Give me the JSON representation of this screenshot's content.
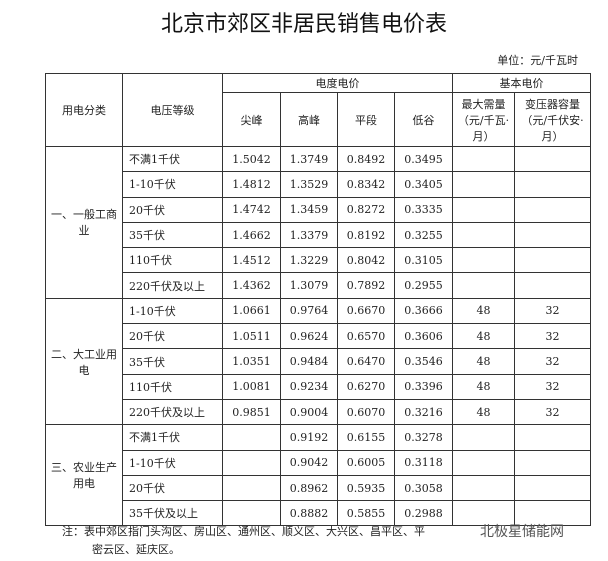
{
  "title": "北京市郊区非居民销售电价表",
  "unit": "单位：元/千瓦时",
  "headers": {
    "category": "用电分类",
    "voltage": "电压等级",
    "energy_price": "电度电价",
    "peak": "尖峰",
    "high": "高峰",
    "flat": "平段",
    "valley": "低谷",
    "basic_price": "基本电价",
    "max_demand": "最大需量（元/千瓦·月）",
    "transformer": "变压器容量（元/千伏安·月）"
  },
  "groups": [
    {
      "name": "一、一般工商业",
      "rows": [
        [
          "不满1千伏",
          "1.5042",
          "1.3749",
          "0.8492",
          "0.3495",
          "",
          ""
        ],
        [
          "1-10千伏",
          "1.4812",
          "1.3529",
          "0.8342",
          "0.3405",
          "",
          ""
        ],
        [
          "20千伏",
          "1.4742",
          "1.3459",
          "0.8272",
          "0.3335",
          "",
          ""
        ],
        [
          "35千伏",
          "1.4662",
          "1.3379",
          "0.8192",
          "0.3255",
          "",
          ""
        ],
        [
          "110千伏",
          "1.4512",
          "1.3229",
          "0.8042",
          "0.3105",
          "",
          ""
        ],
        [
          "220千伏及以上",
          "1.4362",
          "1.3079",
          "0.7892",
          "0.2955",
          "",
          ""
        ]
      ]
    },
    {
      "name": "二、大工业用电",
      "rows": [
        [
          "1-10千伏",
          "1.0661",
          "0.9764",
          "0.6670",
          "0.3666",
          "48",
          "32"
        ],
        [
          "20千伏",
          "1.0511",
          "0.9624",
          "0.6570",
          "0.3606",
          "48",
          "32"
        ],
        [
          "35千伏",
          "1.0351",
          "0.9484",
          "0.6470",
          "0.3546",
          "48",
          "32"
        ],
        [
          "110千伏",
          "1.0081",
          "0.9234",
          "0.6270",
          "0.3396",
          "48",
          "32"
        ],
        [
          "220千伏及以上",
          "0.9851",
          "0.9004",
          "0.6070",
          "0.3216",
          "48",
          "32"
        ]
      ]
    },
    {
      "name": "三、农业生产用电",
      "rows": [
        [
          "不满1千伏",
          "",
          "0.9192",
          "0.6155",
          "0.3278",
          "",
          ""
        ],
        [
          "1-10千伏",
          "",
          "0.9042",
          "0.6005",
          "0.3118",
          "",
          ""
        ],
        [
          "20千伏",
          "",
          "0.8962",
          "0.5935",
          "0.3058",
          "",
          ""
        ],
        [
          "35千伏及以上",
          "",
          "0.8882",
          "0.5855",
          "0.2988",
          "",
          ""
        ]
      ]
    }
  ],
  "note_line1": "注：表中郊区指门头沟区、房山区、通州区、顺义区、大兴区、昌平区、平",
  "note_line2": "密云区、延庆区。",
  "watermark_logo": "北极星储能网"
}
